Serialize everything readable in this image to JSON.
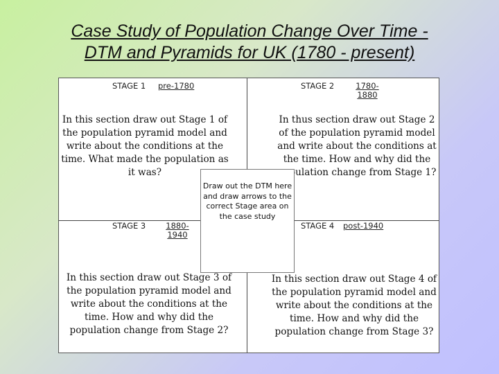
{
  "title": {
    "line1": "Case Study of Population Change Over Time -",
    "line2": "DTM and Pyramids for UK (1780 - present)"
  },
  "worksheet": {
    "stage1": {
      "label": "STAGE 1",
      "period": "pre-1780",
      "instruction": "In this section draw out Stage 1 of the population pyramid model and write about the conditions at the time. What made the population as it was?"
    },
    "stage2": {
      "label": "STAGE 2",
      "period_line1": "1780-",
      "period_line2": "1880",
      "instruction": "In thus section draw out Stage 2 of the population pyramid model and write about the conditions at the time. How and why did the population change from Stage 1?"
    },
    "stage3": {
      "label": "STAGE 3",
      "period_line1": "1880-",
      "period_line2": "1940",
      "instruction": "In this section draw out Stage 3 of the population pyramid model and write about the conditions at the time. How and why did the population change from Stage 2?"
    },
    "stage4": {
      "label": "STAGE 4",
      "period": "post-1940",
      "instruction": "In this section draw out Stage 4 of the population pyramid model and write about the conditions at the time. How and why did the population change from Stage 3?"
    },
    "center": {
      "instruction": "Draw out the DTM here and draw arrows to the correct Stage area on the case study"
    }
  }
}
